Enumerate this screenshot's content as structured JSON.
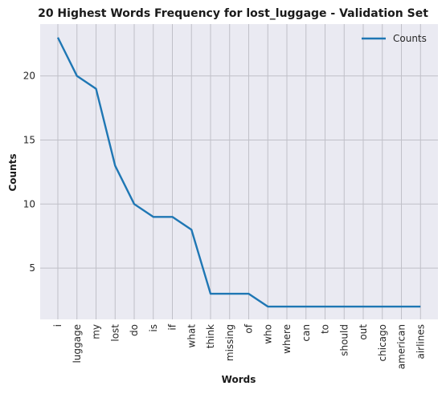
{
  "chart_data": {
    "type": "line",
    "title": "20 Highest Words Frequency for lost_luggage - Validation Set",
    "xlabel": "Words",
    "ylabel": "Counts",
    "categories": [
      "i",
      "luggage",
      "my",
      "lost",
      "do",
      "is",
      "if",
      "what",
      "think",
      "missing",
      "of",
      "who",
      "where",
      "can",
      "to",
      "should",
      "out",
      "chicago",
      "american",
      "airlines"
    ],
    "series": [
      {
        "name": "Counts",
        "values": [
          23,
          20,
          19,
          13,
          10,
          9,
          9,
          8,
          3,
          3,
          3,
          2,
          2,
          2,
          2,
          2,
          2,
          2,
          2,
          2
        ],
        "color": "#1f77b4"
      }
    ],
    "yticks": [
      5,
      10,
      15,
      20
    ],
    "ylim": [
      1,
      24.05
    ],
    "grid": true,
    "legend_position": "top-right",
    "background": "#eaeaf2",
    "grid_color": "#c0c0c8"
  }
}
